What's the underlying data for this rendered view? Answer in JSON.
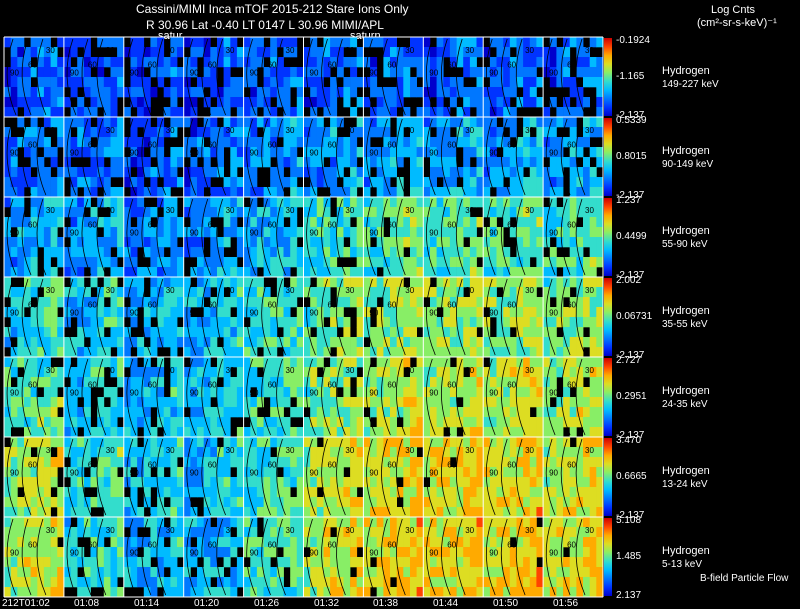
{
  "header": {
    "title": "Cassini/MIMI Inca mTOF  2015-212   Stare   Ions Only",
    "subtitle": "R        30.96  Lat -0.40  LT 0147  L        30.96   MIMI/APL",
    "saturn_labels": [
      "satur",
      "saturn"
    ]
  },
  "colorbar_header": {
    "line1": "Log Cnts",
    "line2": "(cm²-sr-s-keV)⁻¹"
  },
  "footer_note": "B-field Particle Flow",
  "colors": {
    "background": "#000000",
    "grid": "#ffffff",
    "text": "#ffffff",
    "colormap": [
      "#0000cc",
      "#0033ff",
      "#0077ff",
      "#00bbff",
      "#33ddcc",
      "#88ee66",
      "#dddd22",
      "#ffaa00",
      "#ff4400",
      "#cc0000"
    ]
  },
  "chart_data": {
    "type": "heatmap",
    "x_tick_labels": [
      "212T01:02",
      "01:08",
      "01:14",
      "01:20",
      "01:26",
      "01:32",
      "01:38",
      "01:44",
      "01:50",
      "01:56"
    ],
    "frames_per_row": 10,
    "contour_labels": [
      "90",
      "60",
      "30"
    ],
    "rows": [
      {
        "species": "Hydrogen",
        "energy": "149-227 keV",
        "cb_max": "-0.1924",
        "cb_mid": "-1.165",
        "cb_min": "-2.137",
        "level": [
          0.2,
          0.18,
          0.17,
          0.18,
          0.2,
          0.22,
          0.22,
          0.22,
          0.22,
          0.22
        ]
      },
      {
        "species": "Hydrogen",
        "energy": "90-149 keV",
        "cb_max": "0.5339",
        "cb_mid": "0.8015",
        "cb_min": "-2.137",
        "level": [
          0.24,
          0.22,
          0.2,
          0.22,
          0.26,
          0.3,
          0.32,
          0.32,
          0.32,
          0.3
        ]
      },
      {
        "species": "Hydrogen",
        "energy": "55-90 keV",
        "cb_max": "1.237",
        "cb_mid": "0.4499",
        "cb_min": "-2.137",
        "level": [
          0.32,
          0.3,
          0.28,
          0.3,
          0.36,
          0.45,
          0.48,
          0.48,
          0.48,
          0.46
        ]
      },
      {
        "species": "Hydrogen",
        "energy": "35-55 keV",
        "cb_max": "2.002",
        "cb_mid": "0.06731",
        "cb_min": "-2.137",
        "level": [
          0.42,
          0.38,
          0.34,
          0.36,
          0.44,
          0.52,
          0.55,
          0.56,
          0.56,
          0.54
        ]
      },
      {
        "species": "Hydrogen",
        "energy": "24-35 keV",
        "cb_max": "2.727",
        "cb_mid": "0.2951",
        "cb_min": "-2.137",
        "level": [
          0.48,
          0.4,
          0.36,
          0.36,
          0.44,
          0.54,
          0.58,
          0.6,
          0.6,
          0.58
        ]
      },
      {
        "species": "Hydrogen",
        "energy": "13-24 keV",
        "cb_max": "3.470",
        "cb_mid": "0.6665",
        "cb_min": "-2.137",
        "level": [
          0.58,
          0.45,
          0.38,
          0.38,
          0.46,
          0.6,
          0.64,
          0.66,
          0.66,
          0.62
        ]
      },
      {
        "species": "Hydrogen",
        "energy": "5-13 keV",
        "cb_max": "5.108",
        "cb_mid": "1.485",
        "cb_min": "2.137",
        "level": [
          0.6,
          0.42,
          0.35,
          0.36,
          0.46,
          0.62,
          0.66,
          0.68,
          0.68,
          0.64
        ]
      }
    ]
  }
}
